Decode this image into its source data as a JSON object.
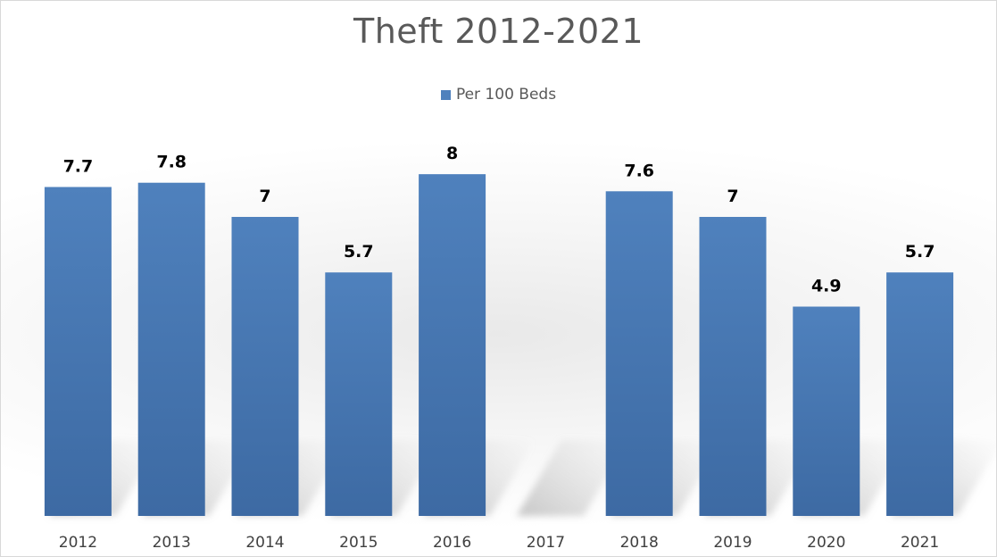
{
  "chart_data": {
    "type": "bar",
    "title": "Theft 2012-2021",
    "xlabel": "",
    "ylabel": "",
    "categories": [
      "2012",
      "2013",
      "2014",
      "2015",
      "2016",
      "2017",
      "2018",
      "2019",
      "2020",
      "2021"
    ],
    "series": [
      {
        "name": "Per 100 Beds",
        "color": "#4f81bd",
        "values": [
          7.7,
          7.8,
          7,
          5.7,
          8,
          null,
          7.6,
          7,
          4.9,
          5.7
        ],
        "data_labels": [
          "7.7",
          "7.8",
          "7",
          "5.7",
          "8",
          "",
          "7.6",
          "7",
          "4.9",
          "5.7"
        ]
      }
    ],
    "ylim": [
      0,
      8.4
    ],
    "grid": false,
    "legend_position": "top-center"
  }
}
